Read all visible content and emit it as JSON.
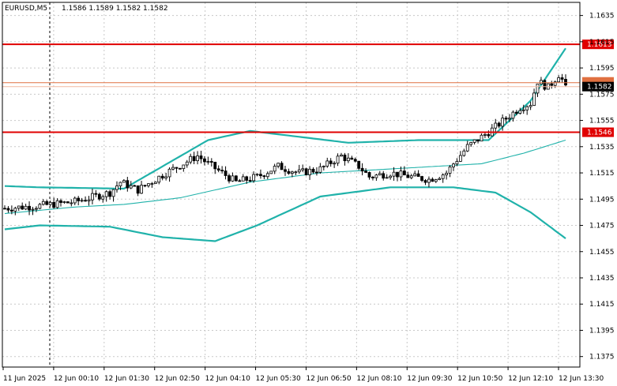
{
  "header": {
    "symbol": "EURUSD,M5",
    "ohlc": "1.1586 1.1589 1.1582 1.1582"
  },
  "colors": {
    "candle": "#000000",
    "bollinger": "#20b2aa",
    "level_line": "#e00000",
    "current_line": "#e07040",
    "price_label_bg": "#e00000",
    "current_label_bg": "#000000",
    "grid": "#c8c8c8"
  },
  "chart_data": {
    "type": "candlestick",
    "y_range": [
      1.1367,
      1.1645
    ],
    "y_ticks": [
      "1.1635",
      "1.1615",
      "1.1595",
      "1.1575",
      "1.1555",
      "1.1535",
      "1.1515",
      "1.1495",
      "1.1475",
      "1.1455",
      "1.1435",
      "1.1415",
      "1.1395",
      "1.1375"
    ],
    "x_ticks": [
      "11 Jun 2025",
      "12 Jun 00:10",
      "12 Jun 01:30",
      "12 Jun 02:50",
      "12 Jun 04:10",
      "12 Jun 05:30",
      "12 Jun 06:50",
      "12 Jun 08:10",
      "12 Jun 09:30",
      "12 Jun 10:50",
      "12 Jun 12:10",
      "12 Jun 13:30"
    ],
    "grid": true,
    "levels": [
      {
        "value": 1.1613,
        "label": "1.1613"
      },
      {
        "value": 1.1546,
        "label": "1.1546"
      }
    ],
    "current_price": {
      "value": 1.1582,
      "label": "1.1582"
    },
    "close_key": [
      [
        0,
        1.1488
      ],
      [
        10,
        1.149
      ],
      [
        20,
        1.1493
      ],
      [
        30,
        1.15
      ],
      [
        33,
        1.1508
      ],
      [
        38,
        1.1502
      ],
      [
        46,
        1.1515
      ],
      [
        55,
        1.1528
      ],
      [
        58,
        1.1522
      ],
      [
        62,
        1.1515
      ],
      [
        66,
        1.1508
      ],
      [
        72,
        1.1512
      ],
      [
        78,
        1.152
      ],
      [
        84,
        1.1515
      ],
      [
        90,
        1.1518
      ],
      [
        96,
        1.1528
      ],
      [
        101,
        1.152
      ],
      [
        104,
        1.1512
      ],
      [
        110,
        1.1515
      ],
      [
        116,
        1.1512
      ],
      [
        121,
        1.151
      ],
      [
        126,
        1.1515
      ],
      [
        128,
        1.1522
      ],
      [
        132,
        1.1535
      ],
      [
        139,
        1.1548
      ],
      [
        147,
        1.1565
      ],
      [
        150,
        1.1568
      ],
      [
        152,
        1.1585
      ],
      [
        155,
        1.158
      ],
      [
        158,
        1.159
      ],
      [
        160,
        1.1582
      ]
    ],
    "bollinger": {
      "upper": [
        [
          0,
          1.1505
        ],
        [
          10,
          1.1504
        ],
        [
          34,
          1.1503
        ],
        [
          58,
          1.154
        ],
        [
          70,
          1.1547
        ],
        [
          98,
          1.1538
        ],
        [
          118,
          1.154
        ],
        [
          138,
          1.154
        ],
        [
          150,
          1.157
        ],
        [
          160,
          1.161
        ]
      ],
      "middle": [
        [
          0,
          1.1484
        ],
        [
          20,
          1.1489
        ],
        [
          34,
          1.1491
        ],
        [
          50,
          1.1496
        ],
        [
          70,
          1.1508
        ],
        [
          90,
          1.1515
        ],
        [
          110,
          1.1518
        ],
        [
          136,
          1.1522
        ],
        [
          148,
          1.153
        ],
        [
          160,
          1.154
        ]
      ],
      "lower": [
        [
          0,
          1.1472
        ],
        [
          10,
          1.1475
        ],
        [
          30,
          1.1474
        ],
        [
          45,
          1.1466
        ],
        [
          60,
          1.1463
        ],
        [
          72,
          1.1475
        ],
        [
          90,
          1.1497
        ],
        [
          110,
          1.1504
        ],
        [
          128,
          1.1504
        ],
        [
          140,
          1.15
        ],
        [
          150,
          1.1485
        ],
        [
          160,
          1.1465
        ]
      ]
    }
  }
}
